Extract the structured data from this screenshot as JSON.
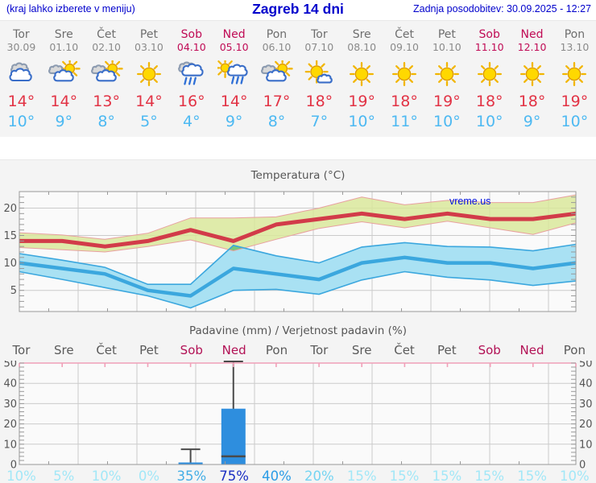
{
  "header": {
    "left": "(kraj lahko izberete v meniju)",
    "title": "Zagreb 14 dni",
    "updated": "Zadnja posodobitev: 30.09.2025 - 12:27"
  },
  "watermark": "vreme.us",
  "colors": {
    "header_text": "#0000cc",
    "weekday_label": "#6e6e6e",
    "weekend_label": "#c00b55",
    "tmax_text": "#e23345",
    "tmin_text": "#4db9f2",
    "tmax_line": "#d23b49",
    "tmin_line": "#3ba7de",
    "tmax_band": "#d9e89b",
    "tmax_band_edge": "#e8a0a0",
    "tmin_band": "#a9e1f3",
    "band_overlap": "#76c77e",
    "rain_bar": "#2e8ede",
    "whisker": "#4a4a4a",
    "grid": "#cbcbcb",
    "plot_border": "#999999",
    "precip_top_axis": "#f0a0b8",
    "prob_pale": "#a2e7f7",
    "prob_20": "#74d4f2",
    "prob_35": "#44aee6",
    "prob_40": "#2b9ce6",
    "prob_75": "#1a2ec2"
  },
  "days": [
    {
      "name": "Tor",
      "date": "30.09",
      "weekend": false,
      "icon": "cloudy",
      "tmax_label": "14°",
      "tmin_label": "10°",
      "prob_label": "10%",
      "prob_color": "#a2e7f7"
    },
    {
      "name": "Sre",
      "date": "01.10",
      "weekend": false,
      "icon": "sun-clouds",
      "tmax_label": "14°",
      "tmin_label": "9°",
      "prob_label": "5%",
      "prob_color": "#a2e7f7"
    },
    {
      "name": "Čet",
      "date": "02.10",
      "weekend": false,
      "icon": "sun-clouds",
      "tmax_label": "13°",
      "tmin_label": "8°",
      "prob_label": "10%",
      "prob_color": "#a2e7f7"
    },
    {
      "name": "Pet",
      "date": "03.10",
      "weekend": false,
      "icon": "sunny",
      "tmax_label": "14°",
      "tmin_label": "5°",
      "prob_label": "0%",
      "prob_color": "#a2e7f7"
    },
    {
      "name": "Sob",
      "date": "04.10",
      "weekend": true,
      "icon": "rain",
      "tmax_label": "16°",
      "tmin_label": "4°",
      "prob_label": "35%",
      "prob_color": "#44aee6"
    },
    {
      "name": "Ned",
      "date": "05.10",
      "weekend": true,
      "icon": "sun-rain",
      "tmax_label": "14°",
      "tmin_label": "9°",
      "prob_label": "75%",
      "prob_color": "#1a2ec2"
    },
    {
      "name": "Pon",
      "date": "06.10",
      "weekend": false,
      "icon": "sun-clouds",
      "tmax_label": "17°",
      "tmin_label": "8°",
      "prob_label": "40%",
      "prob_color": "#2b9ce6"
    },
    {
      "name": "Tor",
      "date": "07.10",
      "weekend": false,
      "icon": "sun-small-cloud",
      "tmax_label": "18°",
      "tmin_label": "7°",
      "prob_label": "20%",
      "prob_color": "#74d4f2"
    },
    {
      "name": "Sre",
      "date": "08.10",
      "weekend": false,
      "icon": "sunny",
      "tmax_label": "19°",
      "tmin_label": "10°",
      "prob_label": "15%",
      "prob_color": "#a2e7f7"
    },
    {
      "name": "Čet",
      "date": "09.10",
      "weekend": false,
      "icon": "sunny",
      "tmax_label": "18°",
      "tmin_label": "11°",
      "prob_label": "15%",
      "prob_color": "#a2e7f7"
    },
    {
      "name": "Pet",
      "date": "10.10",
      "weekend": false,
      "icon": "sunny",
      "tmax_label": "19°",
      "tmin_label": "10°",
      "prob_label": "15%",
      "prob_color": "#a2e7f7"
    },
    {
      "name": "Sob",
      "date": "11.10",
      "weekend": true,
      "icon": "sunny",
      "tmax_label": "18°",
      "tmin_label": "10°",
      "prob_label": "15%",
      "prob_color": "#a2e7f7"
    },
    {
      "name": "Ned",
      "date": "12.10",
      "weekend": true,
      "icon": "sunny",
      "tmax_label": "18°",
      "tmin_label": "9°",
      "prob_label": "15%",
      "prob_color": "#a2e7f7"
    },
    {
      "name": "Pon",
      "date": "13.10",
      "weekend": false,
      "icon": "sunny",
      "tmax_label": "19°",
      "tmin_label": "10°",
      "prob_label": "10%",
      "prob_color": "#a2e7f7"
    }
  ],
  "charts": {
    "temperature": {
      "title": "Temperatura (°C)"
    },
    "precipitation": {
      "title": "Padavine (mm) / Verjetnost padavin (%)"
    }
  },
  "chart_data": [
    {
      "type": "line",
      "title": "Temperatura (°C)",
      "x": [
        "30.09",
        "01.10",
        "02.10",
        "03.10",
        "04.10",
        "05.10",
        "06.10",
        "07.10",
        "08.10",
        "09.10",
        "10.10",
        "11.10",
        "12.10",
        "13.10"
      ],
      "ylim": [
        1,
        23
      ],
      "yticks": [
        5,
        10,
        15,
        20
      ],
      "grid": true,
      "series": [
        {
          "name": "tmax",
          "values": [
            14,
            14,
            13,
            14,
            16,
            14,
            17,
            18,
            19,
            18,
            19,
            18,
            18,
            19
          ]
        },
        {
          "name": "tmax_range_hi",
          "values": [
            15.5,
            15.1,
            14.3,
            15.4,
            18.2,
            18.2,
            18.4,
            20.0,
            22.0,
            20.6,
            21.4,
            21.0,
            21.0,
            22.4
          ]
        },
        {
          "name": "tmax_range_lo",
          "values": [
            12.8,
            12.4,
            12.0,
            13.0,
            14.2,
            12.2,
            14.3,
            16.3,
            17.5,
            16.4,
            17.6,
            16.4,
            15.2,
            17.3
          ]
        },
        {
          "name": "tmin",
          "values": [
            10,
            9,
            8,
            5,
            4,
            9,
            8,
            7,
            10,
            11,
            10,
            10,
            9,
            10
          ]
        },
        {
          "name": "tmin_range_hi",
          "values": [
            11.7,
            10.5,
            9.2,
            6.1,
            6.1,
            13.2,
            11.3,
            10.0,
            12.9,
            13.7,
            13.0,
            12.9,
            12.2,
            13.4
          ]
        },
        {
          "name": "tmin_range_lo",
          "values": [
            8.4,
            7.0,
            5.5,
            4.0,
            1.8,
            5.0,
            5.2,
            4.3,
            6.9,
            8.4,
            7.4,
            6.9,
            5.9,
            6.7
          ]
        }
      ]
    },
    {
      "type": "bar",
      "title": "Padavine (mm) / Verjetnost padavin (%)",
      "categories": [
        "Tor",
        "Sre",
        "Čet",
        "Pet",
        "Sob",
        "Ned",
        "Pon",
        "Tor",
        "Sre",
        "Čet",
        "Pet",
        "Sob",
        "Ned",
        "Pon"
      ],
      "values": [
        0,
        0,
        0,
        0,
        1,
        27.5,
        0,
        0,
        0,
        0,
        0,
        0,
        0,
        0
      ],
      "median_marks": [
        null,
        null,
        null,
        null,
        null,
        4,
        null,
        null,
        null,
        null,
        null,
        null,
        null,
        null
      ],
      "whisker_hi": [
        null,
        null,
        null,
        null,
        7.5,
        52,
        null,
        null,
        null,
        null,
        null,
        null,
        null,
        null
      ],
      "probabilities_pct": [
        10,
        5,
        10,
        0,
        35,
        75,
        40,
        20,
        15,
        15,
        15,
        15,
        15,
        10
      ],
      "ylim": [
        0,
        52
      ],
      "yticks": [
        0,
        10,
        20,
        30,
        40,
        50
      ],
      "grid": true
    }
  ]
}
